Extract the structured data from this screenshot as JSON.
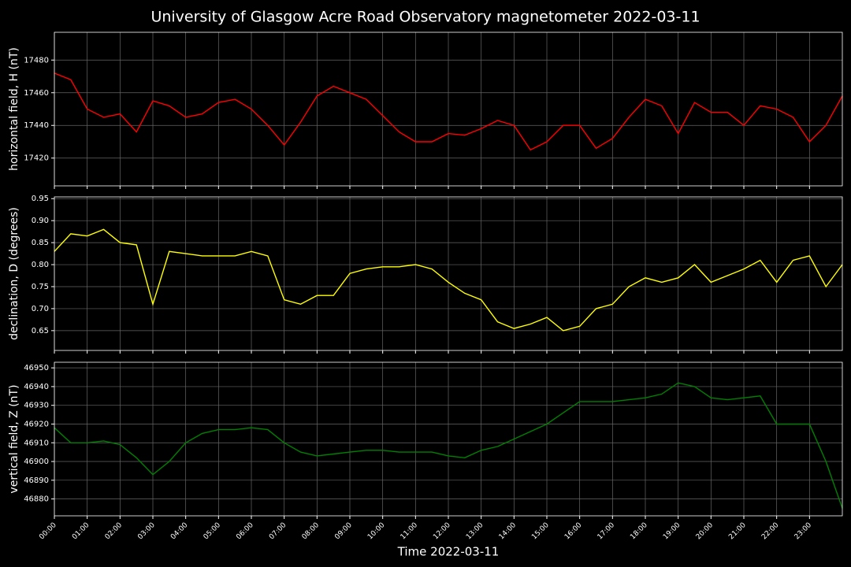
{
  "title": "University of Glasgow Acre Road Observatory magnetometer 2022-03-11",
  "chart_data": [
    {
      "type": "line",
      "ylabel": "horizontal field, H (nT)",
      "color": "#ff0000",
      "grid": true,
      "x": [
        0,
        0.5,
        1,
        1.5,
        2,
        2.5,
        3,
        3.5,
        4,
        4.5,
        5,
        5.5,
        6,
        6.5,
        7,
        7.5,
        8,
        8.5,
        9,
        9.5,
        10,
        10.5,
        11,
        11.5,
        12,
        12.5,
        13,
        13.5,
        14,
        14.5,
        15,
        15.5,
        16,
        16.5,
        17,
        17.5,
        18,
        18.5,
        19,
        19.5,
        20,
        20.5,
        21,
        21.5,
        22,
        22.5,
        23,
        23.5,
        24
      ],
      "values": [
        17472,
        17468,
        17450,
        17445,
        17447,
        17436,
        17455,
        17452,
        17445,
        17447,
        17454,
        17456,
        17450,
        17440,
        17428,
        17442,
        17458,
        17464,
        17460,
        17456,
        17446,
        17436,
        17430,
        17430,
        17435,
        17434,
        17438,
        17443,
        17440,
        17425,
        17430,
        17440,
        17440,
        17426,
        17432,
        17445,
        17456,
        17452,
        17435,
        17454,
        17448,
        17448,
        17440,
        17452,
        17450,
        17445,
        17430,
        17440,
        17458
      ],
      "xlim": [
        0,
        24
      ],
      "ylim": [
        17403,
        17497
      ],
      "yticks": [
        17420,
        17440,
        17460,
        17480
      ]
    },
    {
      "type": "line",
      "ylabel": "declination, D (degrees)",
      "color": "#ffff00",
      "grid": true,
      "x": [
        0,
        0.5,
        1,
        1.5,
        2,
        2.5,
        3,
        3.5,
        4,
        4.5,
        5,
        5.5,
        6,
        6.5,
        7,
        7.5,
        8,
        8.5,
        9,
        9.5,
        10,
        10.5,
        11,
        11.5,
        12,
        12.5,
        13,
        13.5,
        14,
        14.5,
        15,
        15.5,
        16,
        16.5,
        17,
        17.5,
        18,
        18.5,
        19,
        19.5,
        20,
        20.5,
        21,
        21.5,
        22,
        22.5,
        23,
        23.5,
        24
      ],
      "values": [
        0.83,
        0.87,
        0.865,
        0.88,
        0.85,
        0.845,
        0.71,
        0.83,
        0.825,
        0.82,
        0.82,
        0.82,
        0.83,
        0.82,
        0.72,
        0.71,
        0.73,
        0.73,
        0.78,
        0.79,
        0.795,
        0.795,
        0.8,
        0.79,
        0.76,
        0.735,
        0.72,
        0.67,
        0.655,
        0.665,
        0.68,
        0.65,
        0.66,
        0.7,
        0.71,
        0.75,
        0.77,
        0.76,
        0.77,
        0.8,
        0.76,
        0.775,
        0.79,
        0.81,
        0.76,
        0.81,
        0.82,
        0.75,
        0.8
      ],
      "xlim": [
        0,
        24
      ],
      "ylim": [
        0.605,
        0.954
      ],
      "yticks": [
        0.65,
        {
          "value": 0.7,
          "label": "0.70"
        },
        0.75,
        {
          "value": 0.8,
          "label": "0.80"
        },
        0.85,
        {
          "value": 0.9,
          "label": "0.90"
        },
        0.95
      ]
    },
    {
      "type": "line",
      "ylabel": "vertical field, Z (nT)",
      "xlabel": "Time 2022-03-11",
      "color": "#008000",
      "grid": true,
      "x": [
        0,
        0.5,
        1,
        1.5,
        2,
        2.5,
        3,
        3.5,
        4,
        4.5,
        5,
        5.5,
        6,
        6.5,
        7,
        7.5,
        8,
        8.5,
        9,
        9.5,
        10,
        10.5,
        11,
        11.5,
        12,
        12.5,
        13,
        13.5,
        14,
        14.5,
        15,
        15.5,
        16,
        16.5,
        17,
        17.5,
        18,
        18.5,
        19,
        19.5,
        20,
        20.5,
        21,
        21.5,
        22,
        22.5,
        23,
        23.5,
        24
      ],
      "values": [
        46918,
        46910,
        46910,
        46911,
        46909,
        46902,
        46893,
        46900,
        46910,
        46915,
        46917,
        46917,
        46918,
        46917,
        46910,
        46905,
        46903,
        46904,
        46905,
        46906,
        46906,
        46905,
        46905,
        46905,
        46903,
        46902,
        46906,
        46908,
        46912,
        46916,
        46920,
        46926,
        46932,
        46932,
        46932,
        46933,
        46934,
        46936,
        46942,
        46940,
        46934,
        46933,
        46934,
        46935,
        46920,
        46920,
        46920,
        46900,
        46875
      ],
      "xlim": [
        0,
        24
      ],
      "ylim": [
        46871,
        46953
      ],
      "yticks": [
        46880,
        46890,
        46900,
        46910,
        46920,
        46930,
        46940,
        46950
      ],
      "xticks": [
        {
          "value": 0,
          "label": "00:00"
        },
        {
          "value": 1,
          "label": "01:00"
        },
        {
          "value": 2,
          "label": "02:00"
        },
        {
          "value": 3,
          "label": "03:00"
        },
        {
          "value": 4,
          "label": "04:00"
        },
        {
          "value": 5,
          "label": "05:00"
        },
        {
          "value": 6,
          "label": "06:00"
        },
        {
          "value": 7,
          "label": "07:00"
        },
        {
          "value": 8,
          "label": "08:00"
        },
        {
          "value": 9,
          "label": "09:00"
        },
        {
          "value": 10,
          "label": "10:00"
        },
        {
          "value": 11,
          "label": "11:00"
        },
        {
          "value": 12,
          "label": "12:00"
        },
        {
          "value": 13,
          "label": "13:00"
        },
        {
          "value": 14,
          "label": "14:00"
        },
        {
          "value": 15,
          "label": "15:00"
        },
        {
          "value": 16,
          "label": "16:00"
        },
        {
          "value": 17,
          "label": "17:00"
        },
        {
          "value": 18,
          "label": "18:00"
        },
        {
          "value": 19,
          "label": "19:00"
        },
        {
          "value": 20,
          "label": "20:00"
        },
        {
          "value": 21,
          "label": "21:00"
        },
        {
          "value": 22,
          "label": "22:00"
        },
        {
          "value": 23,
          "label": "23:00"
        }
      ]
    }
  ]
}
